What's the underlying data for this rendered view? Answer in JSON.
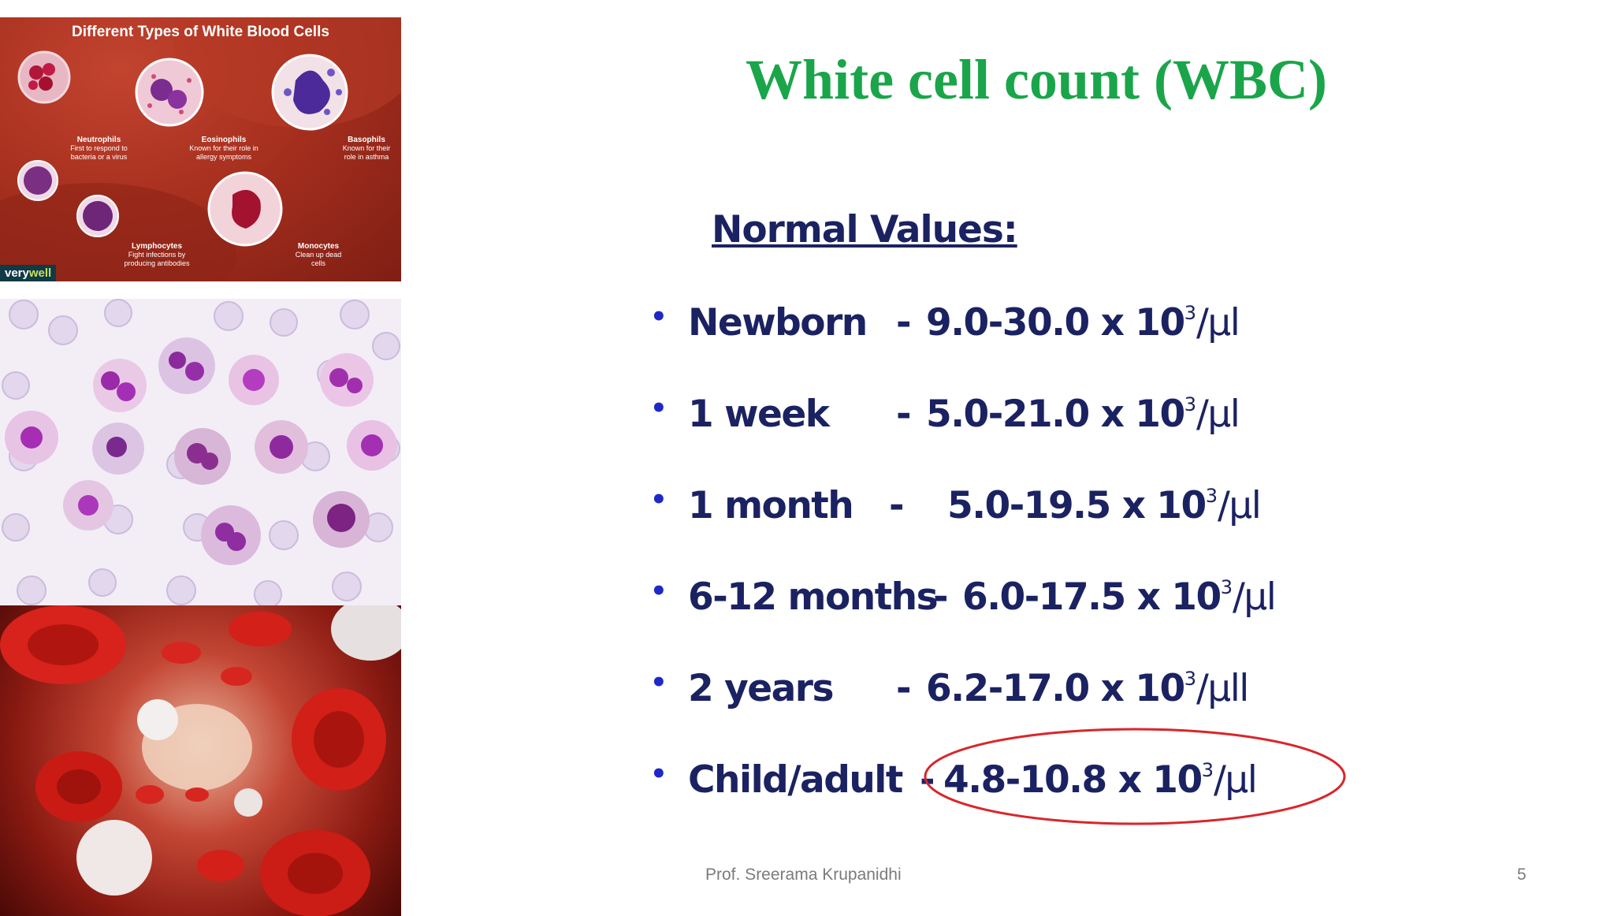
{
  "image1": {
    "title": "Different Types of White Blood Cells",
    "cells": [
      {
        "name": "Neutrophils",
        "desc": "First to respond to bacteria or a virus"
      },
      {
        "name": "Eosinophils",
        "desc": "Known for their role in allergy symptoms"
      },
      {
        "name": "Basophils",
        "desc": "Known for their role in asthma"
      },
      {
        "name": "Lymphocytes",
        "desc": "Fight infections by producing antibodies"
      },
      {
        "name": "Monocytes",
        "desc": "Clean up dead cells"
      }
    ],
    "brand_part1": "very",
    "brand_part2": "well"
  },
  "slide": {
    "title": "White cell count (WBC)",
    "subtitle": "Normal Values:",
    "rows": [
      {
        "label": "Newborn",
        "dash": "-",
        "range": "9.0-30.0 x 10",
        "exp": "3",
        "unit": "/µl"
      },
      {
        "label": "1 week",
        "dash": "-",
        "range": "5.0-21.0 x 10",
        "exp": "3",
        "unit": "/µl"
      },
      {
        "label": "1 month",
        "dash": "-",
        "range": "5.0-19.5 x 10",
        "exp": "3",
        "unit": "/µl"
      },
      {
        "label": "6-12 months",
        "dash": "-",
        "range": "6.0-17.5 x 10",
        "exp": "3",
        "unit": "/µl"
      },
      {
        "label": "2 years",
        "dash": "-",
        "range": "6.2-17.0 x 10",
        "exp": "3",
        "unit": "/µll"
      },
      {
        "label": "Child/adult",
        "dash": "-",
        "range": "4.8-10.8 x 10",
        "exp": "3",
        "unit": "/µl"
      }
    ],
    "bullet": "•",
    "footer": "Prof. Sreerama Krupanidhi",
    "page_number": "5"
  },
  "colors": {
    "title": "#1aa54a",
    "text": "#1b2262",
    "bullet": "#1e28c8",
    "highlight_ellipse": "#d9262b",
    "footer": "#7b7b7b"
  }
}
